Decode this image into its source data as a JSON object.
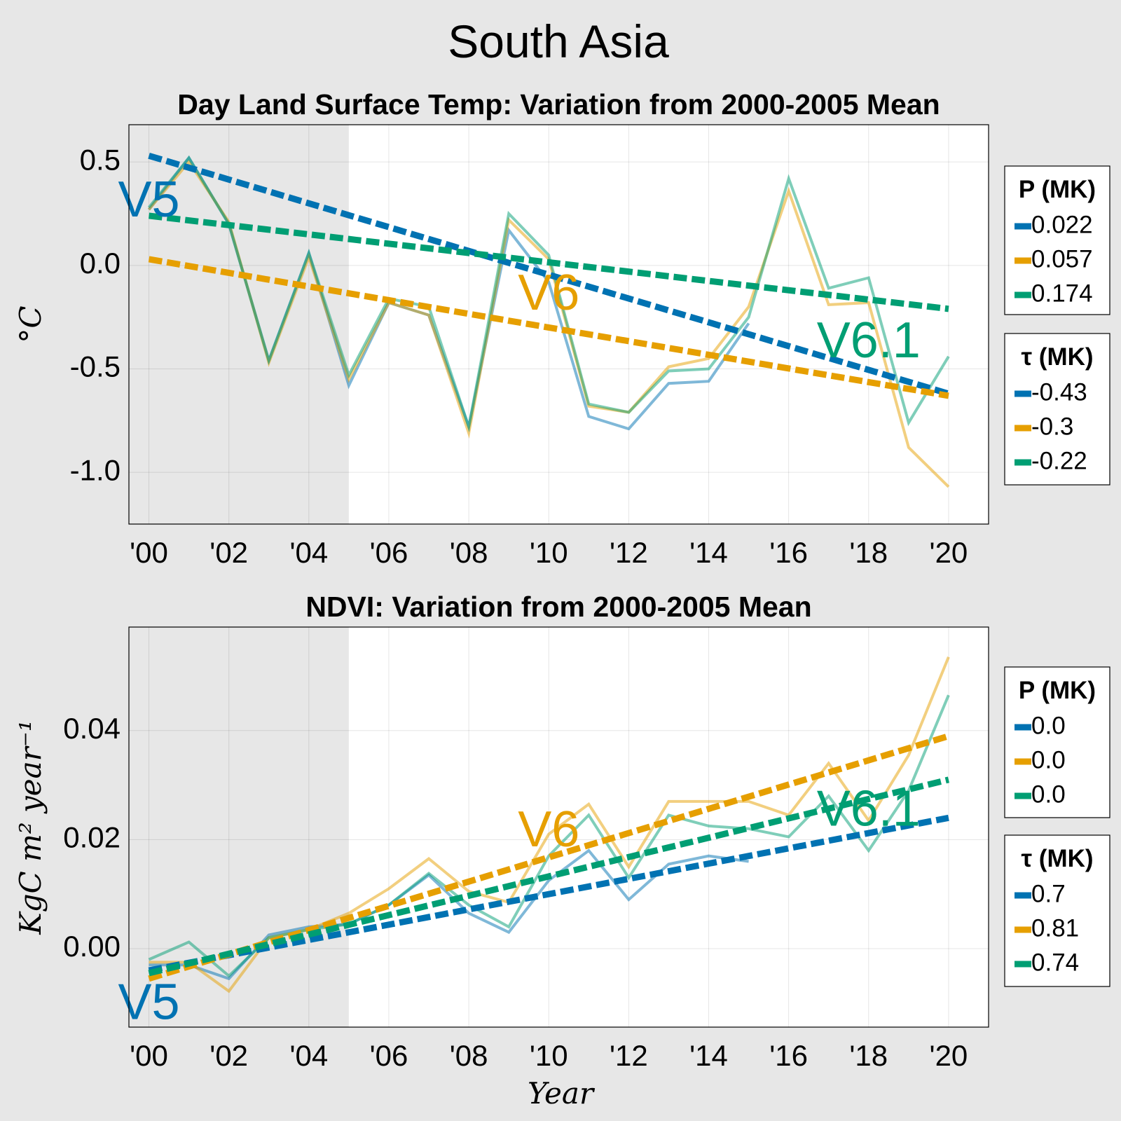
{
  "title": "South Asia",
  "x_label": "Year",
  "colors": {
    "V5": "#0072b2",
    "V6": "#e69f00",
    "V6.1": "#009e73"
  },
  "chart_data": [
    {
      "type": "line",
      "title": "Day Land Surface Temp: Variation from 2000-2005 Mean",
      "ylabel": "°C",
      "xlim": [
        1999.5,
        2021
      ],
      "ylim": [
        -1.25,
        0.68
      ],
      "x_ticks": [
        2000,
        2002,
        2004,
        2006,
        2008,
        2010,
        2012,
        2014,
        2016,
        2018,
        2020
      ],
      "x_tick_labels": [
        "'00",
        "'02",
        "'04",
        "'06",
        "'08",
        "'10",
        "'12",
        "'14",
        "'16",
        "'18",
        "'20"
      ],
      "y_ticks": [
        0.5,
        0.0,
        -0.5,
        -1.0
      ],
      "y_tick_labels": [
        "0.5",
        "0.0",
        "-0.5",
        "-1.0"
      ],
      "baseline_period": [
        1999.5,
        2005
      ],
      "grid": true,
      "series": [
        {
          "name": "V5",
          "x": [
            2000,
            2001,
            2002,
            2003,
            2004,
            2005,
            2006,
            2007,
            2008,
            2009,
            2010,
            2011,
            2012,
            2013,
            2014,
            2015
          ],
          "values": [
            0.27,
            0.52,
            0.2,
            -0.46,
            0.06,
            -0.58,
            -0.18,
            -0.24,
            -0.78,
            0.17,
            -0.08,
            -0.73,
            -0.79,
            -0.57,
            -0.56,
            -0.28
          ]
        },
        {
          "name": "V6",
          "x": [
            2000,
            2001,
            2002,
            2003,
            2004,
            2005,
            2006,
            2007,
            2008,
            2009,
            2010,
            2011,
            2012,
            2013,
            2014,
            2015,
            2016,
            2017,
            2018,
            2019,
            2020
          ],
          "values": [
            0.27,
            0.5,
            0.21,
            -0.47,
            0.04,
            -0.55,
            -0.18,
            -0.24,
            -0.81,
            0.22,
            0.03,
            -0.68,
            -0.71,
            -0.49,
            -0.45,
            -0.2,
            0.36,
            -0.19,
            -0.18,
            -0.88,
            -1.07
          ]
        },
        {
          "name": "V6.1",
          "x": [
            2000,
            2001,
            2002,
            2003,
            2004,
            2005,
            2006,
            2007,
            2008,
            2009,
            2010,
            2011,
            2012,
            2013,
            2014,
            2015,
            2016,
            2017,
            2018,
            2019,
            2020
          ],
          "values": [
            0.28,
            0.52,
            0.2,
            -0.46,
            0.06,
            -0.53,
            -0.16,
            -0.2,
            -0.78,
            0.25,
            0.05,
            -0.67,
            -0.71,
            -0.51,
            -0.5,
            -0.25,
            0.42,
            -0.11,
            -0.06,
            -0.76,
            -0.44
          ]
        }
      ],
      "trends": [
        {
          "name": "V5",
          "x": [
            2000,
            2020
          ],
          "values": [
            0.53,
            -0.62
          ]
        },
        {
          "name": "V6",
          "x": [
            2000,
            2020
          ],
          "values": [
            0.03,
            -0.63
          ]
        },
        {
          "name": "V6.1",
          "x": [
            2000,
            2020
          ],
          "values": [
            0.24,
            -0.21
          ]
        }
      ],
      "annotations": [
        {
          "text": "V5",
          "series": "V5",
          "x": 2000.0,
          "y": 0.3
        },
        {
          "text": "V6",
          "series": "V6",
          "x": 2010.0,
          "y": -0.15
        },
        {
          "text": "V6.1",
          "series": "V6.1",
          "x": 2018.0,
          "y": -0.38
        }
      ],
      "legends": [
        {
          "title": "P (MK)",
          "entries": [
            {
              "series": "V5",
              "label": "0.022"
            },
            {
              "series": "V6",
              "label": "0.057"
            },
            {
              "series": "V6.1",
              "label": "0.174"
            }
          ]
        },
        {
          "title": "τ (MK)",
          "entries": [
            {
              "series": "V5",
              "label": "-0.43"
            },
            {
              "series": "V6",
              "label": "-0.3"
            },
            {
              "series": "V6.1",
              "label": "-0.22"
            }
          ]
        }
      ]
    },
    {
      "type": "line",
      "title": "NDVI: Variation from 2000-2005 Mean",
      "ylabel": "KgC m² year⁻¹",
      "xlim": [
        1999.5,
        2021
      ],
      "ylim": [
        -0.0144,
        0.059
      ],
      "x_ticks": [
        2000,
        2002,
        2004,
        2006,
        2008,
        2010,
        2012,
        2014,
        2016,
        2018,
        2020
      ],
      "x_tick_labels": [
        "'00",
        "'02",
        "'04",
        "'06",
        "'08",
        "'10",
        "'12",
        "'14",
        "'16",
        "'18",
        "'20"
      ],
      "y_ticks": [
        0.04,
        0.02,
        0.0
      ],
      "y_tick_labels": [
        "0.04",
        "0.02",
        "0.00"
      ],
      "baseline_period": [
        1999.5,
        2005
      ],
      "grid": true,
      "series": [
        {
          "name": "V5",
          "x": [
            2000,
            2001,
            2002,
            2003,
            2004,
            2005,
            2006,
            2007,
            2008,
            2009,
            2010,
            2011,
            2012,
            2013,
            2014,
            2015
          ],
          "values": [
            -0.003,
            -0.003,
            -0.0055,
            0.0025,
            0.004,
            0.0045,
            0.008,
            0.0135,
            0.0065,
            0.003,
            0.0125,
            0.018,
            0.009,
            0.0155,
            0.017,
            0.016
          ]
        },
        {
          "name": "V6",
          "x": [
            2000,
            2001,
            2002,
            2003,
            2004,
            2005,
            2006,
            2007,
            2008,
            2009,
            2010,
            2011,
            2012,
            2013,
            2014,
            2015,
            2016,
            2017,
            2018,
            2019,
            2020
          ],
          "values": [
            -0.0025,
            -0.0025,
            -0.0078,
            0.002,
            0.0035,
            0.0065,
            0.011,
            0.0165,
            0.0105,
            0.0085,
            0.021,
            0.0265,
            0.015,
            0.027,
            0.027,
            0.027,
            0.0245,
            0.034,
            0.0235,
            0.0355,
            0.0535
          ]
        },
        {
          "name": "V6.1",
          "x": [
            2000,
            2001,
            2002,
            2003,
            2004,
            2005,
            2006,
            2007,
            2008,
            2009,
            2010,
            2011,
            2012,
            2013,
            2014,
            2015,
            2016,
            2017,
            2018,
            2019,
            2020
          ],
          "values": [
            -0.002,
            0.0012,
            -0.005,
            0.002,
            0.0035,
            0.0045,
            0.008,
            0.0138,
            0.008,
            0.004,
            0.017,
            0.0245,
            0.013,
            0.0245,
            0.0225,
            0.022,
            0.0205,
            0.028,
            0.018,
            0.029,
            0.0465
          ]
        }
      ],
      "trends": [
        {
          "name": "V5",
          "x": [
            2000,
            2020
          ],
          "values": [
            -0.004,
            0.024
          ]
        },
        {
          "name": "V6",
          "x": [
            2000,
            2020
          ],
          "values": [
            -0.0055,
            0.039
          ]
        },
        {
          "name": "V6.1",
          "x": [
            2000,
            2020
          ],
          "values": [
            -0.0045,
            0.031
          ]
        }
      ],
      "annotations": [
        {
          "text": "V5",
          "series": "V5",
          "x": 2000.0,
          "y": -0.0105
        },
        {
          "text": "V6",
          "series": "V6",
          "x": 2010.0,
          "y": 0.0212
        },
        {
          "text": "V6.1",
          "series": "V6.1",
          "x": 2018.0,
          "y": 0.025
        }
      ],
      "legends": [
        {
          "title": "P (MK)",
          "entries": [
            {
              "series": "V5",
              "label": "0.0"
            },
            {
              "series": "V6",
              "label": "0.0"
            },
            {
              "series": "V6.1",
              "label": "0.0"
            }
          ]
        },
        {
          "title": "τ (MK)",
          "entries": [
            {
              "series": "V5",
              "label": "0.7"
            },
            {
              "series": "V6",
              "label": "0.81"
            },
            {
              "series": "V6.1",
              "label": "0.74"
            }
          ]
        }
      ]
    }
  ]
}
